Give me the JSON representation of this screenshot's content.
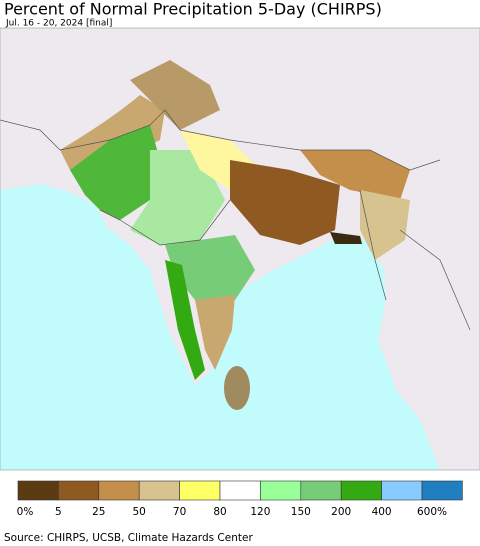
{
  "header": {
    "title": "Percent of Normal Precipitation 5-Day (CHIRPS)",
    "subtitle": "Jul. 16 - 20, 2024 [final]"
  },
  "legend": {
    "items": [
      {
        "color": "#5a3b12",
        "label": "0%"
      },
      {
        "color": "#8f5a22",
        "label": "5"
      },
      {
        "color": "#c48f4b",
        "label": "25"
      },
      {
        "color": "#d6c38f",
        "label": "50"
      },
      {
        "color": "#ffff66",
        "label": "70"
      },
      {
        "color": "#ffffff",
        "label": "80"
      },
      {
        "color": "#99ff99",
        "label": "120"
      },
      {
        "color": "#77cc77",
        "label": "150"
      },
      {
        "color": "#33aa11",
        "label": "200"
      },
      {
        "color": "#88ccff",
        "label": "400"
      },
      {
        "color": "#1f7fc0",
        "label": "600%"
      }
    ]
  },
  "source": "Source: CHIRPS, UCSB, Climate Hazards Center"
}
